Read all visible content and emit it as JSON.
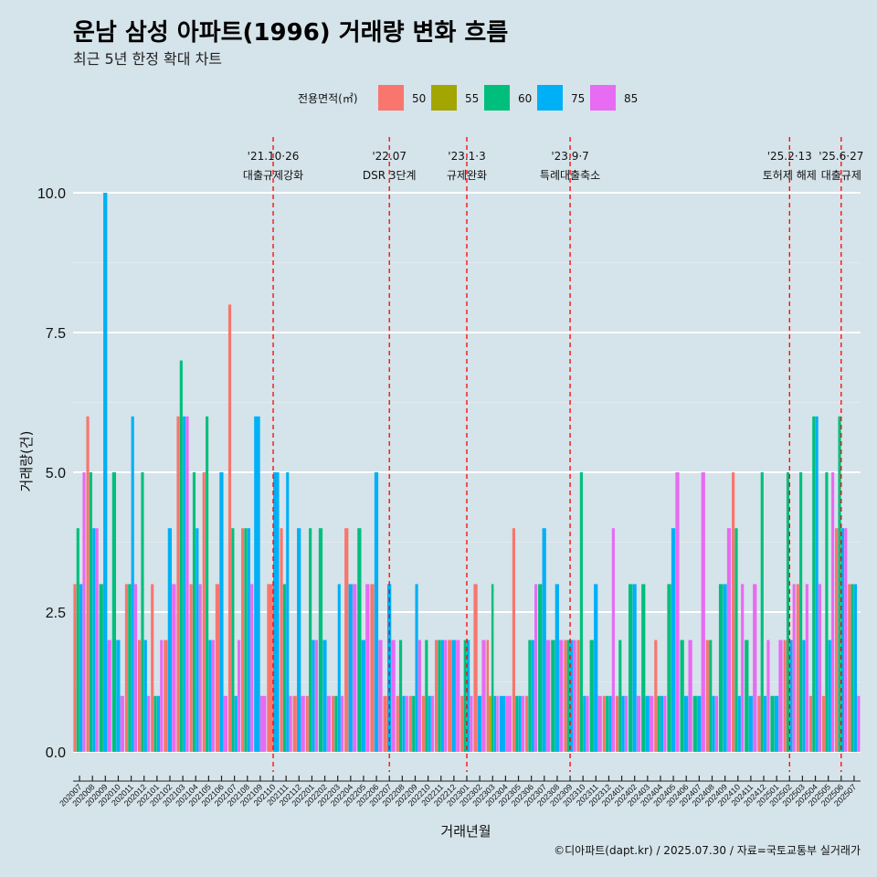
{
  "chart_data": {
    "type": "bar",
    "title": "운남 삼성 아파트(1996) 거래량 변화 흐름",
    "subtitle": "최근 5년 한정 확대 차트",
    "xlabel": "거래년월",
    "ylabel": "거래량(건)",
    "ylim": [
      0,
      10
    ],
    "yticks": [
      "0.0",
      "2.5",
      "5.0",
      "7.5",
      "10.0"
    ],
    "caption": "©디아파트(dapt.kr) / 2025.07.30 / 자료=국토교통부 실거래가",
    "legend": {
      "title": "전용면적(㎡)",
      "position": "top",
      "items": [
        {
          "name": "50",
          "color": "#f8766d"
        },
        {
          "name": "55",
          "color": "#a3a500"
        },
        {
          "name": "60",
          "color": "#00bf7d"
        },
        {
          "name": "75",
          "color": "#00b0f6"
        },
        {
          "name": "85",
          "color": "#e76bf3"
        }
      ]
    },
    "categories": [
      "202007",
      "202008",
      "202009",
      "202010",
      "202011",
      "202012",
      "202101",
      "202102",
      "202103",
      "202104",
      "202105",
      "202106",
      "202107",
      "202108",
      "202109",
      "202110",
      "202111",
      "202112",
      "202201",
      "202202",
      "202203",
      "202204",
      "202205",
      "202206",
      "202207",
      "202208",
      "202209",
      "202210",
      "202211",
      "202212",
      "202301",
      "202302",
      "202303",
      "202304",
      "202305",
      "202306",
      "202307",
      "202308",
      "202309",
      "202310",
      "202311",
      "202312",
      "202401",
      "202402",
      "202403",
      "202404",
      "202405",
      "202406",
      "202407",
      "202408",
      "202409",
      "202410",
      "202411",
      "202412",
      "202501",
      "202502",
      "202503",
      "202504",
      "202505",
      "202506",
      "202507"
    ],
    "series": [
      {
        "name": "50",
        "values": [
          3,
          6,
          0,
          0,
          3,
          2,
          3,
          2,
          6,
          3,
          5,
          3,
          8,
          4,
          0,
          3,
          4,
          1,
          1,
          0,
          1,
          4,
          0,
          3,
          1,
          1,
          1,
          1,
          2,
          2,
          1,
          3,
          2,
          0,
          4,
          1,
          0,
          0,
          2,
          2,
          0,
          1,
          1,
          0,
          0,
          2,
          0,
          0,
          0,
          2,
          0,
          5,
          0,
          1,
          0,
          2,
          3,
          1,
          1,
          4,
          3
        ]
      },
      {
        "name": "55",
        "values": [
          0,
          0,
          0,
          0,
          0,
          0,
          0,
          0,
          0,
          0,
          0,
          0,
          0,
          0,
          0,
          0,
          0,
          0,
          0,
          0,
          0,
          0,
          0,
          0,
          0,
          0,
          0,
          0,
          0,
          0,
          0,
          0,
          1,
          0,
          0,
          0,
          0,
          0,
          0,
          0,
          0,
          0,
          0,
          0,
          0,
          0,
          0,
          0,
          0,
          0,
          0,
          0,
          0,
          0,
          0,
          0,
          0,
          0,
          0,
          0,
          0
        ]
      },
      {
        "name": "60",
        "values": [
          4,
          5,
          3,
          5,
          3,
          5,
          1,
          0,
          7,
          5,
          6,
          0,
          4,
          4,
          0,
          0,
          3,
          0,
          4,
          4,
          1,
          0,
          4,
          0,
          0,
          2,
          1,
          2,
          2,
          0,
          2,
          0,
          3,
          0,
          1,
          2,
          3,
          2,
          2,
          5,
          2,
          1,
          2,
          3,
          3,
          1,
          3,
          2,
          1,
          2,
          3,
          4,
          2,
          5,
          1,
          5,
          5,
          6,
          5,
          6,
          3
        ]
      },
      {
        "name": "75",
        "values": [
          3,
          4,
          10,
          2,
          6,
          2,
          1,
          4,
          6,
          4,
          2,
          5,
          1,
          4,
          6,
          5,
          5,
          4,
          2,
          2,
          3,
          3,
          2,
          5,
          3,
          1,
          3,
          1,
          2,
          2,
          2,
          1,
          1,
          1,
          1,
          2,
          4,
          3,
          2,
          1,
          3,
          1,
          1,
          3,
          1,
          1,
          4,
          1,
          1,
          1,
          3,
          1,
          1,
          1,
          1,
          2,
          2,
          6,
          2,
          4,
          3
        ]
      },
      {
        "name": "85",
        "values": [
          5,
          4,
          2,
          1,
          3,
          1,
          2,
          3,
          6,
          3,
          2,
          1,
          2,
          3,
          1,
          0,
          1,
          1,
          2,
          1,
          1,
          3,
          3,
          2,
          2,
          1,
          2,
          1,
          2,
          2,
          1,
          2,
          1,
          1,
          1,
          3,
          2,
          2,
          2,
          1,
          1,
          4,
          1,
          1,
          1,
          1,
          5,
          2,
          5,
          1,
          4,
          3,
          3,
          2,
          2,
          3,
          3,
          3,
          5,
          4,
          1
        ]
      }
    ],
    "events": [
      {
        "date": "'21.10·26",
        "label": "대출규제강화",
        "month": "202110"
      },
      {
        "date": "'22.07",
        "label": "DSR 3단계",
        "month": "202207"
      },
      {
        "date": "'23.1·3",
        "label": "규제완화",
        "month": "202301"
      },
      {
        "date": "'23.9·7",
        "label": "특례대출축소",
        "month": "202309"
      },
      {
        "date": "'25.2·13",
        "label": "토허제 해제",
        "month": "202502"
      },
      {
        "date": "'25.6·27",
        "label": "대출규제",
        "month": "202506"
      }
    ]
  }
}
